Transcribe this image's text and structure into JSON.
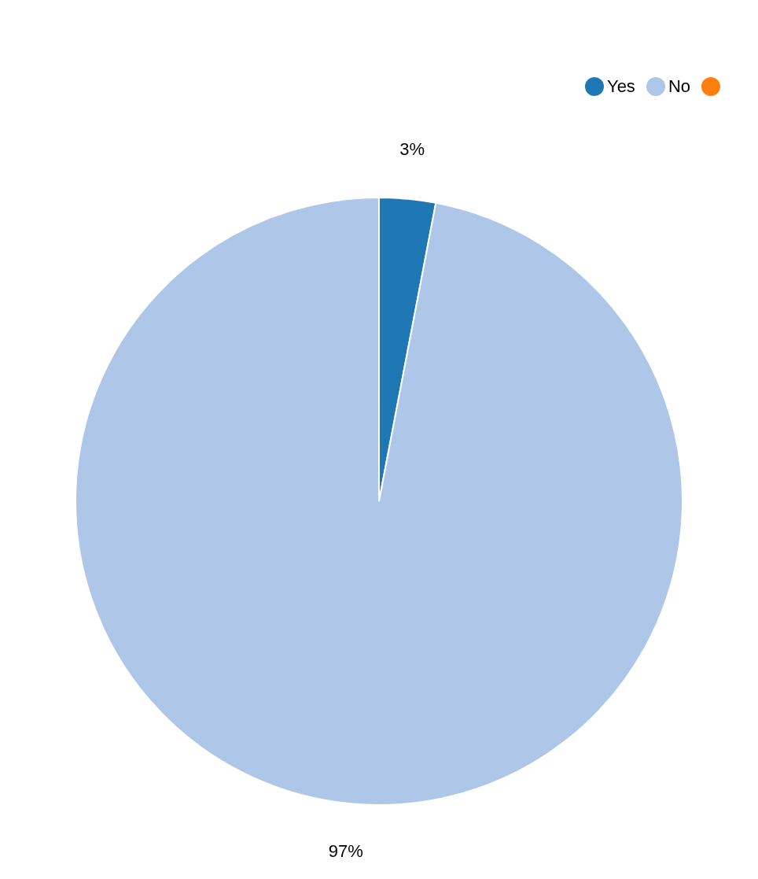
{
  "chart_data": {
    "type": "pie",
    "categories": [
      "Yes",
      "No",
      null
    ],
    "values": [
      3,
      97,
      0
    ],
    "colors": [
      "#1f77b4",
      "#aec7e8",
      "#ff7f0e"
    ],
    "value_labels": [
      "3%",
      "97%",
      null
    ],
    "legend": "top right"
  }
}
